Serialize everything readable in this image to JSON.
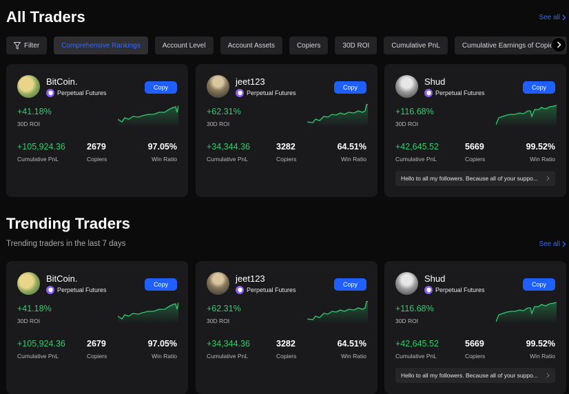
{
  "all_traders": {
    "title": "All Traders",
    "see_all": "See all",
    "filter_label": "Filter",
    "tabs": [
      "Comprehensive Rankings",
      "Account Level",
      "Account Assets",
      "Copiers",
      "30D ROI",
      "Cumulative PnL",
      "Cumulative Earnings of Copiers"
    ],
    "active_tab": "Comprehensive Rankings",
    "cards": [
      {
        "name": "BitCoin.",
        "badge": "Perpetual Futures",
        "copy": "Copy",
        "roi": "+41.18%",
        "roi_label": "30D ROI",
        "pnl": "+105,924.36",
        "pnl_label": "Cumulative PnL",
        "copiers": "2679",
        "copiers_label": "Copiers",
        "win_ratio": "97.05%",
        "win_ratio_label": "Win Ratio",
        "bio": ""
      },
      {
        "name": "jeet123",
        "badge": "Perpetual Futures",
        "copy": "Copy",
        "roi": "+62.31%",
        "roi_label": "30D ROI",
        "pnl": "+34,344.36",
        "pnl_label": "Cumulative PnL",
        "copiers": "3282",
        "copiers_label": "Copiers",
        "win_ratio": "64.51%",
        "win_ratio_label": "Win Ratio",
        "bio": ""
      },
      {
        "name": "Shud",
        "badge": "Perpetual Futures",
        "copy": "Copy",
        "roi": "+116.68%",
        "roi_label": "30D ROI",
        "pnl": "+42,645.52",
        "pnl_label": "Cumulative PnL",
        "copiers": "5669",
        "copiers_label": "Copiers",
        "win_ratio": "99.52%",
        "win_ratio_label": "Win Ratio",
        "bio": "Hello to all my followers. Because all of your suppo..."
      }
    ]
  },
  "trending_traders": {
    "title": "Trending Traders",
    "subtitle": "Trending traders in the last 7 days",
    "see_all": "See all",
    "cards": [
      {
        "name": "BitCoin.",
        "badge": "Perpetual Futures",
        "copy": "Copy",
        "roi": "+41.18%",
        "roi_label": "30D ROI",
        "pnl": "+105,924.36",
        "pnl_label": "Cumulative PnL",
        "copiers": "2679",
        "copiers_label": "Copiers",
        "win_ratio": "97.05%",
        "win_ratio_label": "Win Ratio",
        "bio": ""
      },
      {
        "name": "jeet123",
        "badge": "Perpetual Futures",
        "copy": "Copy",
        "roi": "+62.31%",
        "roi_label": "30D ROI",
        "pnl": "+34,344.36",
        "pnl_label": "Cumulative PnL",
        "copiers": "3282",
        "copiers_label": "Copiers",
        "win_ratio": "64.51%",
        "win_ratio_label": "Win Ratio",
        "bio": ""
      },
      {
        "name": "Shud",
        "badge": "Perpetual Futures",
        "copy": "Copy",
        "roi": "+116.68%",
        "roi_label": "30D ROI",
        "pnl": "+42,645.52",
        "pnl_label": "Cumulative PnL",
        "copiers": "5669",
        "copiers_label": "Copiers",
        "win_ratio": "99.52%",
        "win_ratio_label": "Win Ratio",
        "bio": "Hello to all my followers. Because all of your suppo..."
      }
    ]
  },
  "colors": {
    "accent": "#1f5eff",
    "positive": "#2fcc71",
    "badge": "#8b5cf6",
    "card": "#1a1a1c",
    "background": "#0b0b0c"
  },
  "icons": {
    "filter": "filter-icon",
    "next": "chevron-right-icon",
    "badge": "shield-badge-icon",
    "bio_more": "chevron-right-icon"
  }
}
